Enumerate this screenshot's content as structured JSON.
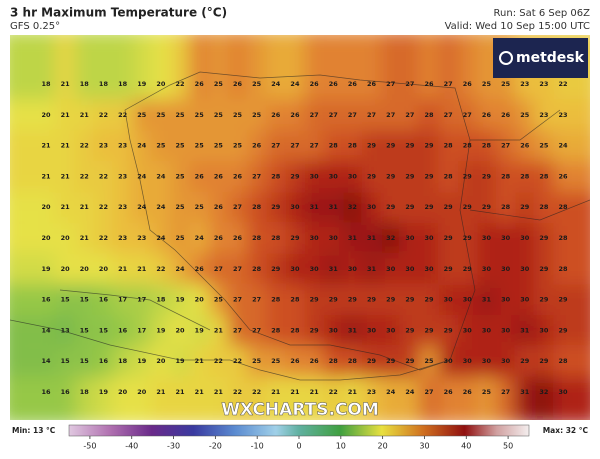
{
  "map": {
    "title": "3 hr Maximum Temperature (°C)",
    "subtitle": "GFS 0.25°",
    "run": "Run: Sat 6 Sep 06Z",
    "valid": "Valid: Wed 10 Sep 15:00 UTC",
    "logo": "metdesk",
    "watermark": "WXCHARTS.COM",
    "min_label": "Min: 13 °C",
    "max_label": "Max: 32 °C",
    "grid": [
      [
        18,
        21,
        18,
        18,
        18,
        19,
        20,
        22,
        26,
        25,
        26,
        25,
        24,
        24,
        26,
        26,
        26,
        26,
        27,
        27,
        26,
        27,
        26,
        25,
        25,
        23,
        23,
        22
      ],
      [
        20,
        21,
        21,
        22,
        22,
        25,
        25,
        25,
        25,
        25,
        25,
        25,
        26,
        26,
        27,
        27,
        27,
        27,
        27,
        27,
        28,
        27,
        27,
        26,
        26,
        25,
        23,
        23
      ],
      [
        21,
        21,
        22,
        23,
        23,
        24,
        25,
        25,
        25,
        25,
        25,
        26,
        27,
        27,
        27,
        28,
        28,
        29,
        29,
        29,
        29,
        28,
        28,
        28,
        27,
        26,
        25,
        24
      ],
      [
        21,
        21,
        22,
        22,
        23,
        24,
        24,
        25,
        26,
        26,
        26,
        27,
        28,
        29,
        30,
        30,
        30,
        29,
        29,
        29,
        29,
        28,
        29,
        29,
        28,
        28,
        28,
        26
      ],
      [
        20,
        21,
        21,
        22,
        23,
        24,
        24,
        25,
        25,
        26,
        27,
        28,
        29,
        30,
        31,
        31,
        32,
        30,
        29,
        29,
        29,
        29,
        29,
        29,
        28,
        29,
        28,
        28
      ],
      [
        20,
        20,
        21,
        22,
        23,
        23,
        24,
        25,
        24,
        26,
        26,
        28,
        28,
        29,
        30,
        30,
        31,
        31,
        32,
        30,
        30,
        29,
        29,
        30,
        30,
        30,
        29,
        28
      ],
      [
        19,
        20,
        20,
        20,
        21,
        21,
        22,
        24,
        26,
        27,
        27,
        28,
        29,
        30,
        30,
        31,
        30,
        31,
        30,
        30,
        30,
        29,
        29,
        30,
        30,
        30,
        29,
        28
      ],
      [
        16,
        15,
        15,
        16,
        17,
        17,
        18,
        19,
        20,
        25,
        27,
        27,
        28,
        28,
        29,
        29,
        29,
        29,
        29,
        29,
        29,
        30,
        30,
        31,
        30,
        30,
        29,
        29
      ],
      [
        14,
        13,
        15,
        15,
        16,
        17,
        19,
        20,
        19,
        21,
        27,
        27,
        28,
        28,
        29,
        30,
        31,
        30,
        30,
        29,
        29,
        29,
        30,
        30,
        30,
        31,
        30,
        29
      ],
      [
        14,
        15,
        15,
        16,
        18,
        19,
        20,
        19,
        21,
        22,
        22,
        25,
        25,
        26,
        26,
        28,
        28,
        29,
        29,
        29,
        25,
        30,
        30,
        30,
        30,
        29,
        29,
        28
      ],
      [
        16,
        16,
        18,
        19,
        20,
        20,
        21,
        21,
        21,
        21,
        22,
        22,
        21,
        21,
        21,
        22,
        21,
        23,
        24,
        24,
        27,
        26,
        26,
        25,
        27,
        31,
        32,
        30
      ]
    ],
    "colorbar": {
      "lim": [
        -55,
        55
      ],
      "ticks": [
        -50,
        -40,
        -30,
        -20,
        -10,
        0,
        10,
        20,
        30,
        40,
        50
      ]
    }
  }
}
